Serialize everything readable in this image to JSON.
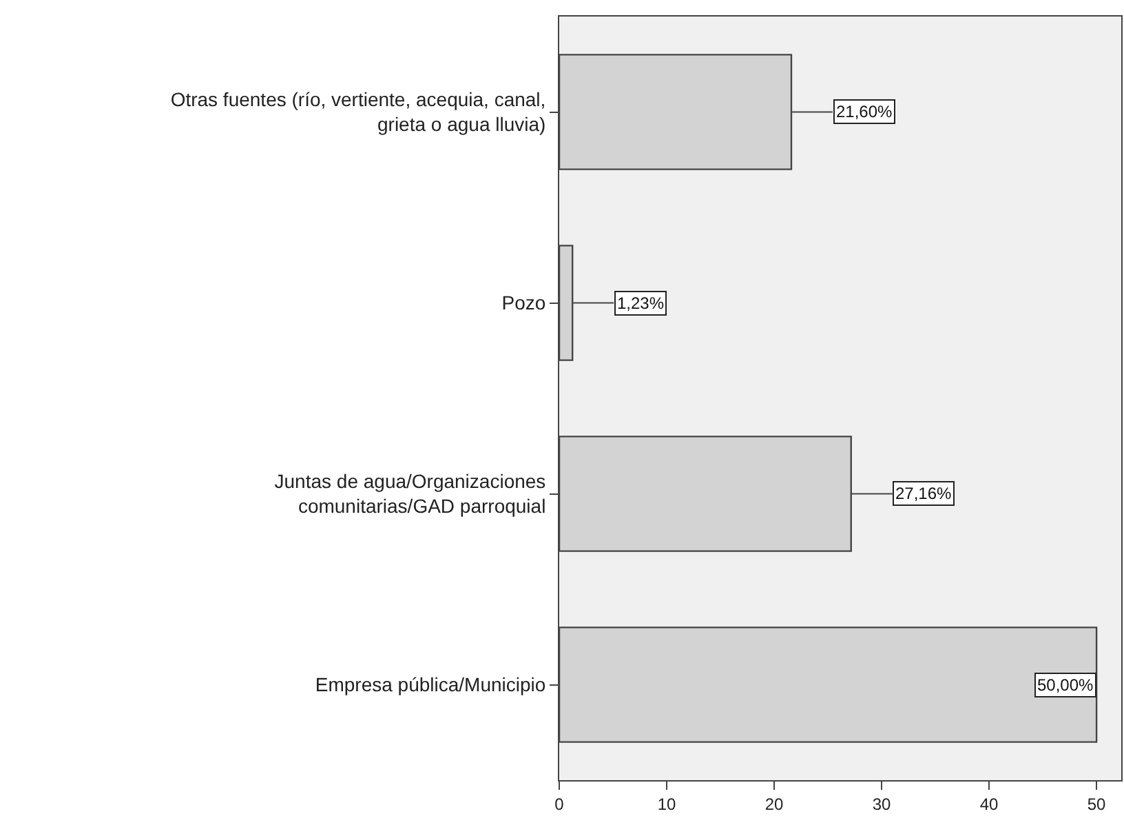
{
  "chart_data": {
    "type": "bar",
    "orientation": "horizontal",
    "categories": [
      "Otras fuentes (río, vertiente, acequia, canal,\ngrieta o agua lluvia)",
      "Pozo",
      "Juntas de agua/Organizaciones\ncomunitarias/GAD parroquial",
      "Empresa pública/Municipio"
    ],
    "values": [
      21.6,
      1.23,
      27.16,
      50
    ],
    "value_labels": [
      "21,60%",
      "1,23%",
      "27,16%",
      "50,00%"
    ],
    "color": "#d3d3d3",
    "xlim": [
      0,
      52.3
    ],
    "xticks": [
      0,
      10,
      20,
      30,
      40,
      50
    ]
  }
}
